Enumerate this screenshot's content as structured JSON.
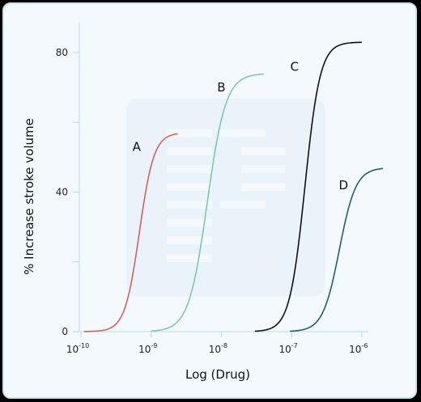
{
  "chart_data": {
    "type": "line",
    "xlabel": "Log (Drug)",
    "ylabel": "% Increase stroke volume",
    "x_scale": "log",
    "xlim": [
      1e-10,
      2e-06
    ],
    "ylim": [
      0,
      85
    ],
    "x_ticks": [
      {
        "value": 1e-10,
        "base": "10",
        "exp": "-10"
      },
      {
        "value": 1e-09,
        "base": "10",
        "exp": "-9"
      },
      {
        "value": 1e-08,
        "base": "10",
        "exp": "-8"
      },
      {
        "value": 1e-07,
        "base": "10",
        "exp": "-7"
      },
      {
        "value": 1e-06,
        "base": "10",
        "exp": "-6"
      }
    ],
    "y_ticks": [
      0,
      20,
      40,
      60,
      80
    ],
    "y_tick_labels": [
      "0",
      "",
      "40",
      "",
      "80"
    ],
    "grid": false,
    "series": [
      {
        "name": "A",
        "color": "#d9615a",
        "ec50": 6.8e-10,
        "emax": 57,
        "hill": 4.2,
        "x_start": 1.1e-10,
        "x_end": 2.4e-09,
        "label_at": [
          6.2e-10,
          53
        ]
      },
      {
        "name": "B",
        "color": "#7fcaa0",
        "ec50": 6.3e-09,
        "emax": 74,
        "hill": 3.3,
        "x_start": 1e-09,
        "x_end": 4e-08,
        "label_at": [
          1e-08,
          70
        ]
      },
      {
        "name": "C",
        "color": "#111111",
        "ec50": 1.55e-07,
        "emax": 83,
        "hill": 4.0,
        "x_start": 3e-08,
        "x_end": 1e-06,
        "label_at": [
          1.1e-07,
          76
        ]
      },
      {
        "name": "D",
        "color": "#1f5f78",
        "ec50": 4.8e-07,
        "emax": 47,
        "hill": 3.7,
        "x_start": 9.5e-08,
        "x_end": 2e-06,
        "label_at": [
          5.5e-07,
          42
        ]
      }
    ]
  }
}
